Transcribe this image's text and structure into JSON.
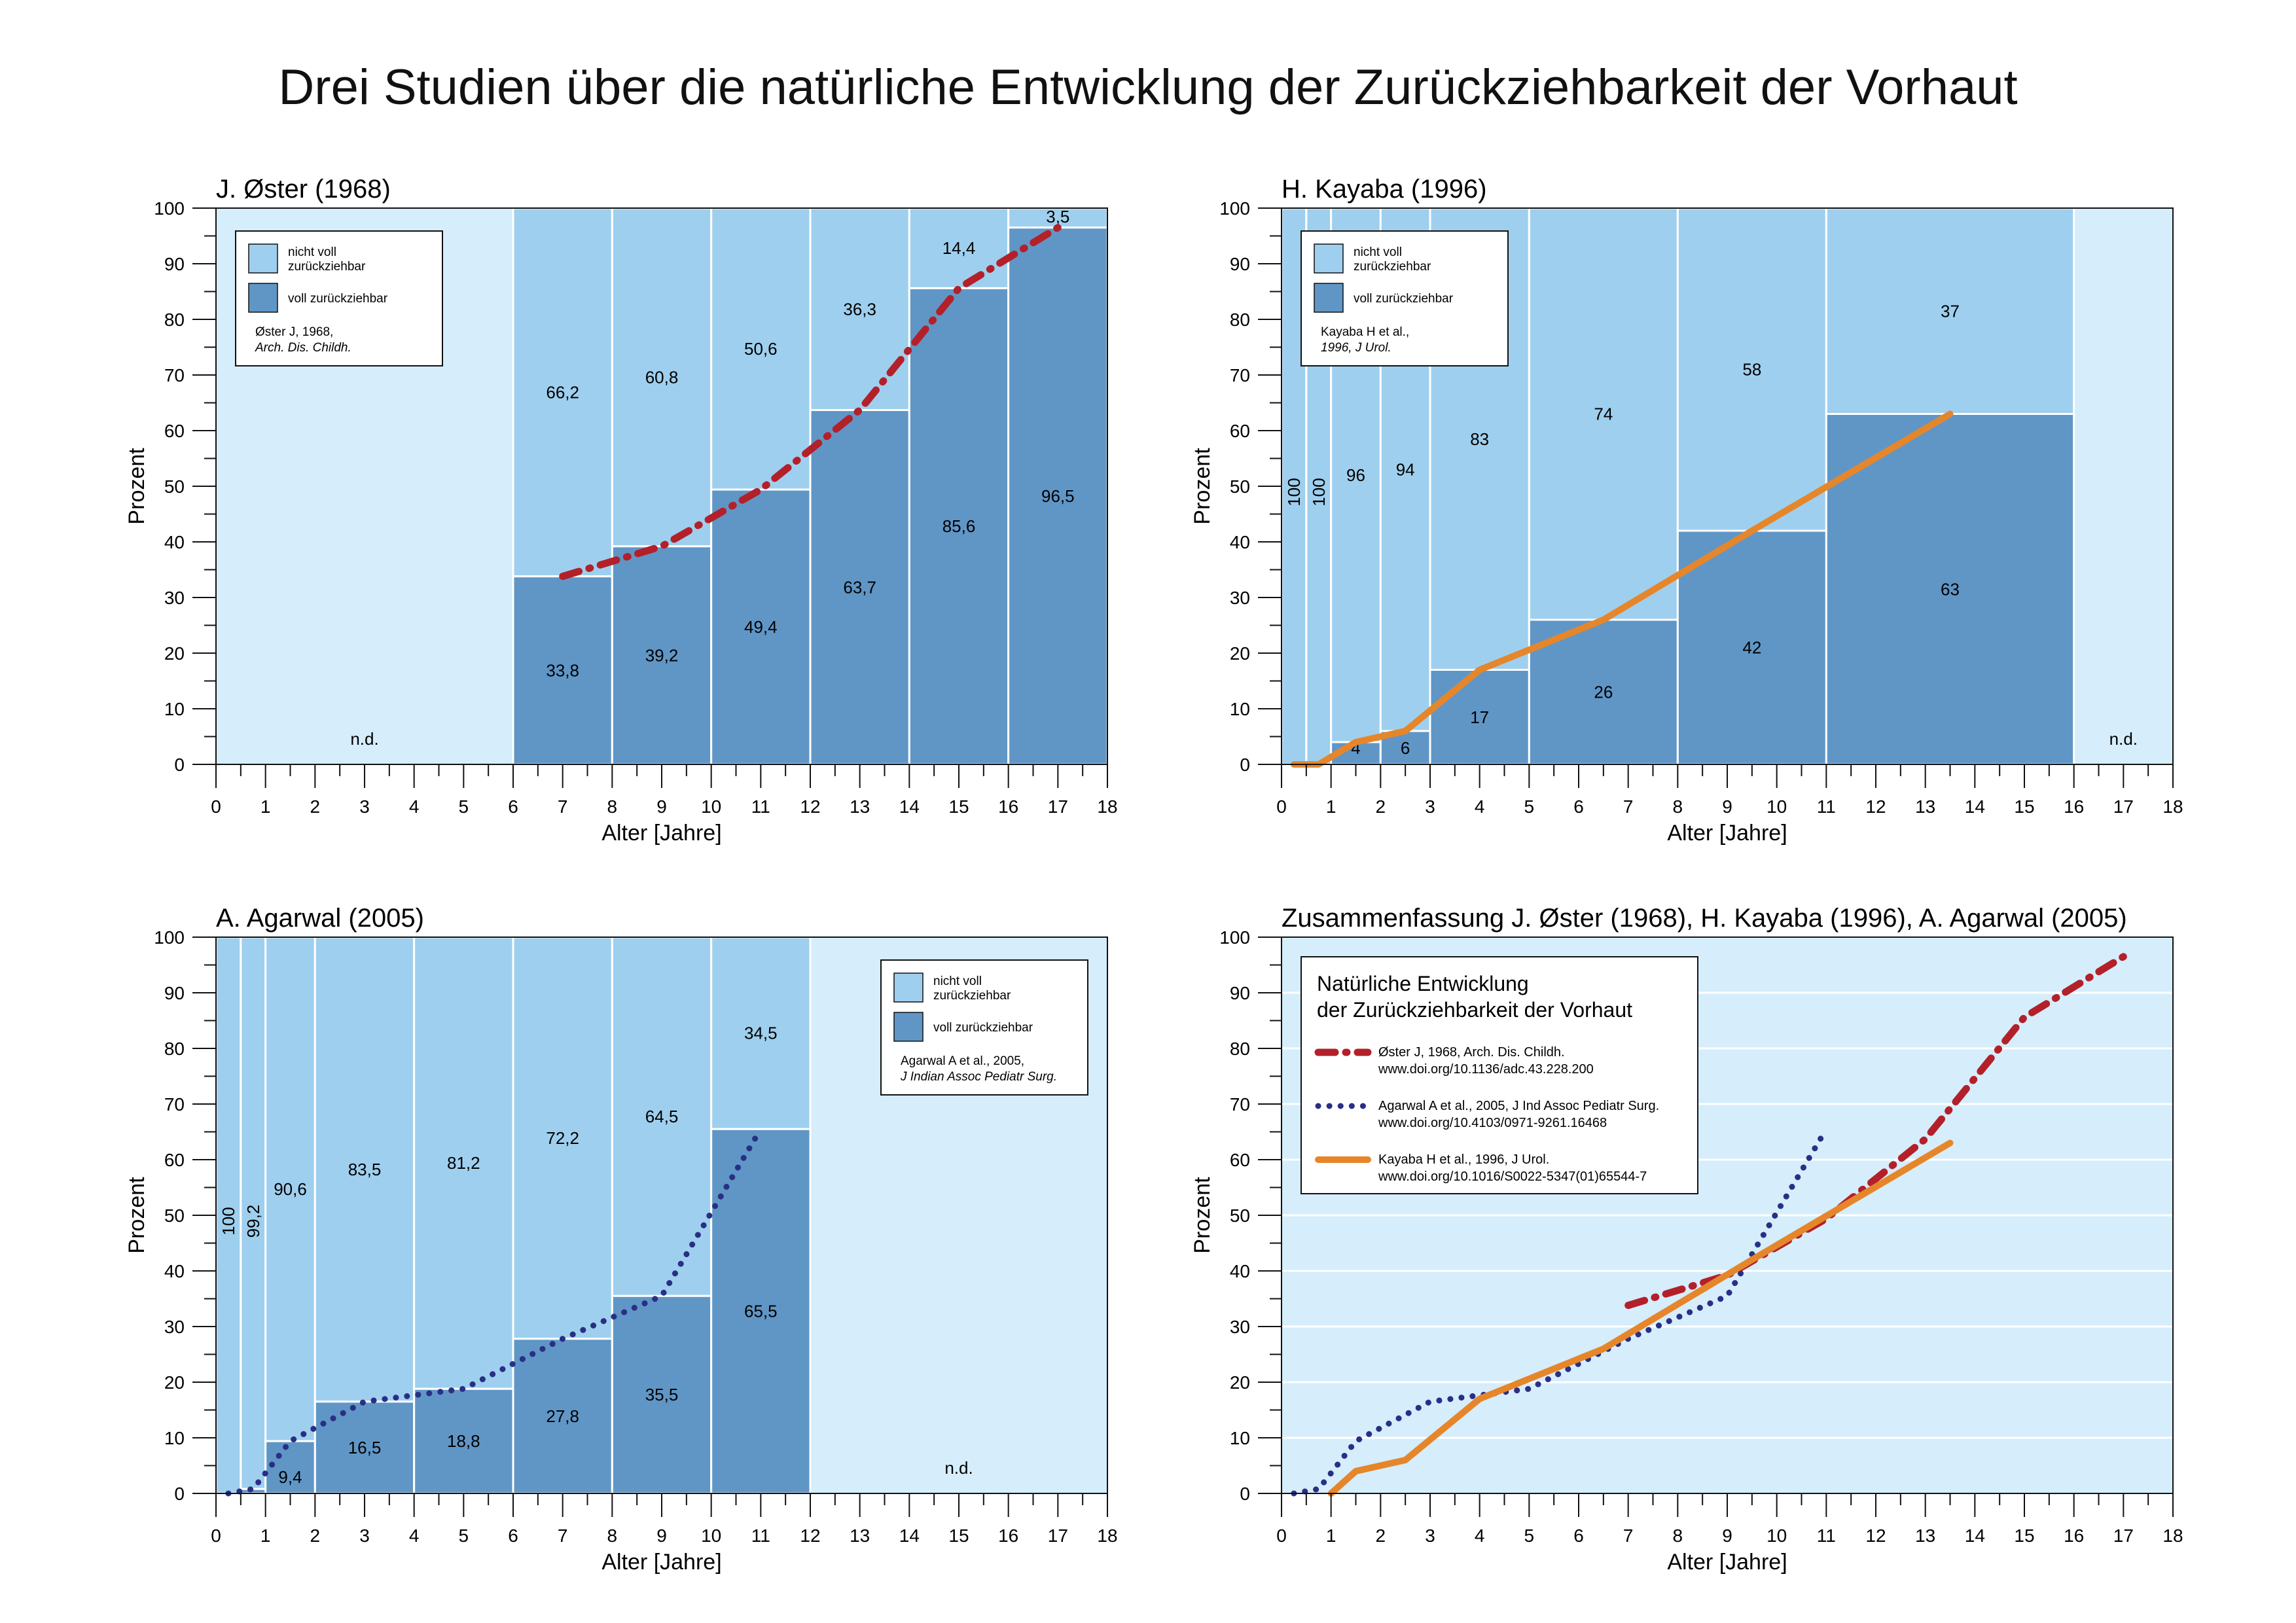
{
  "page_title": "Drei Studien über die natürliche Entwicklung der Zurückziehbarkeit der Vorhaut",
  "colors": {
    "light": "#9fcfee",
    "dark": "#6096c6",
    "background": "#d6edfb",
    "oster": "#b3202a",
    "agarwal": "#2a2f85",
    "kayaba": "#e6862a"
  },
  "chart_data": [
    {
      "type": "bar",
      "title": "J. Øster (1968)",
      "xlabel": "Alter [Jahre]",
      "ylabel": "Prozent",
      "xlim": [
        0,
        18
      ],
      "ylim": [
        0,
        100
      ],
      "x_ticks": [
        "0",
        "1",
        "2",
        "3",
        "4",
        "5",
        "6",
        "7",
        "8",
        "9",
        "10",
        "11",
        "12",
        "13",
        "14",
        "15",
        "16",
        "17",
        "18"
      ],
      "y_ticks": [
        "0",
        "10",
        "20",
        "30",
        "40",
        "50",
        "60",
        "70",
        "80",
        "90",
        "100"
      ],
      "legend": {
        "placement": "top-left",
        "light_label": [
          "nicht voll",
          "zurückziehbar"
        ],
        "dark_label": "voll zurückziehbar",
        "source": [
          "Øster J, 1968,",
          "Arch. Dis. Childh."
        ]
      },
      "nd_label": "n.d.",
      "nd_range": [
        0,
        6
      ],
      "bins": [
        {
          "x0": 6,
          "x1": 8,
          "retractable": 33.8,
          "not_retractable": 66.2,
          "dark_label": "33,8",
          "light_label": "66,2"
        },
        {
          "x0": 8,
          "x1": 10,
          "retractable": 39.2,
          "not_retractable": 60.8,
          "dark_label": "39,2",
          "light_label": "60,8"
        },
        {
          "x0": 10,
          "x1": 12,
          "retractable": 49.4,
          "not_retractable": 50.6,
          "dark_label": "49,4",
          "light_label": "50,6"
        },
        {
          "x0": 12,
          "x1": 14,
          "retractable": 63.7,
          "not_retractable": 36.3,
          "dark_label": "63,7",
          "light_label": "36,3"
        },
        {
          "x0": 14,
          "x1": 16,
          "retractable": 85.6,
          "not_retractable": 14.4,
          "dark_label": "85,6",
          "light_label": "14,4"
        },
        {
          "x0": 16,
          "x1": 18,
          "retractable": 96.5,
          "not_retractable": 3.5,
          "dark_label": "96,5",
          "light_label": "3,5"
        }
      ],
      "trend": {
        "style": "dashdot",
        "color_key": "oster",
        "points": [
          [
            7,
            33.8
          ],
          [
            9,
            39.2
          ],
          [
            11,
            49.4
          ],
          [
            13,
            63.7
          ],
          [
            15,
            85.6
          ],
          [
            17,
            96.5
          ]
        ]
      }
    },
    {
      "type": "bar",
      "title": "H. Kayaba (1996)",
      "xlabel": "Alter [Jahre]",
      "ylabel": "Prozent",
      "xlim": [
        0,
        18
      ],
      "ylim": [
        0,
        100
      ],
      "x_ticks": [
        "0",
        "1",
        "2",
        "3",
        "4",
        "5",
        "6",
        "7",
        "8",
        "9",
        "10",
        "11",
        "12",
        "13",
        "14",
        "15",
        "16",
        "17",
        "18"
      ],
      "y_ticks": [
        "0",
        "10",
        "20",
        "30",
        "40",
        "50",
        "60",
        "70",
        "80",
        "90",
        "100"
      ],
      "legend": {
        "placement": "top-left",
        "light_label": [
          "nicht voll",
          "zurückziehbar"
        ],
        "dark_label": "voll zurückziehbar",
        "source": [
          "Kayaba H et al.,",
          "1996, J Urol."
        ]
      },
      "nd_label": "n.d.",
      "nd_range": [
        16,
        18
      ],
      "bins": [
        {
          "x0": 0,
          "x1": 0.5,
          "retractable": 0,
          "not_retractable": 100,
          "dark_label": "",
          "light_label": "100",
          "vertical": true
        },
        {
          "x0": 0.5,
          "x1": 1,
          "retractable": 0,
          "not_retractable": 100,
          "dark_label": "",
          "light_label": "100",
          "vertical": true
        },
        {
          "x0": 1,
          "x1": 2,
          "retractable": 4,
          "not_retractable": 96,
          "dark_label": "4",
          "light_label": "96"
        },
        {
          "x0": 2,
          "x1": 3,
          "retractable": 6,
          "not_retractable": 94,
          "dark_label": "6",
          "light_label": "94"
        },
        {
          "x0": 3,
          "x1": 5,
          "retractable": 17,
          "not_retractable": 83,
          "dark_label": "17",
          "light_label": "83"
        },
        {
          "x0": 5,
          "x1": 8,
          "retractable": 26,
          "not_retractable": 74,
          "dark_label": "26",
          "light_label": "74"
        },
        {
          "x0": 8,
          "x1": 11,
          "retractable": 42,
          "not_retractable": 58,
          "dark_label": "42",
          "light_label": "58"
        },
        {
          "x0": 11,
          "x1": 16,
          "retractable": 63,
          "not_retractable": 37,
          "dark_label": "63",
          "light_label": "37"
        }
      ],
      "trend": {
        "style": "solid",
        "color_key": "kayaba",
        "points": [
          [
            0.25,
            0
          ],
          [
            0.75,
            0
          ],
          [
            1.5,
            4
          ],
          [
            2.5,
            6
          ],
          [
            4,
            17
          ],
          [
            6.5,
            26
          ],
          [
            9.5,
            42
          ],
          [
            13.5,
            63
          ]
        ]
      }
    },
    {
      "type": "bar",
      "title": "A. Agarwal (2005)",
      "xlabel": "Alter [Jahre]",
      "ylabel": "Prozent",
      "xlim": [
        0,
        18
      ],
      "ylim": [
        0,
        100
      ],
      "x_ticks": [
        "0",
        "1",
        "2",
        "3",
        "4",
        "5",
        "6",
        "7",
        "8",
        "9",
        "10",
        "11",
        "12",
        "13",
        "14",
        "15",
        "16",
        "17",
        "18"
      ],
      "y_ticks": [
        "0",
        "10",
        "20",
        "30",
        "40",
        "50",
        "60",
        "70",
        "80",
        "90",
        "100"
      ],
      "legend": {
        "placement": "top-right",
        "light_label": [
          "nicht voll",
          "zurückziehbar"
        ],
        "dark_label": "voll zurückziehbar",
        "source": [
          "Agarwal A et al., 2005,",
          "J Indian Assoc Pediatr Surg."
        ]
      },
      "nd_label": "n.d.",
      "nd_range": [
        12,
        18
      ],
      "bins": [
        {
          "x0": 0,
          "x1": 0.5,
          "retractable": 0,
          "not_retractable": 100,
          "dark_label": "",
          "light_label": "100",
          "vertical": true
        },
        {
          "x0": 0.5,
          "x1": 1,
          "retractable": 0.8,
          "not_retractable": 99.2,
          "dark_label": "",
          "light_label": "99,2",
          "vertical": true
        },
        {
          "x0": 1,
          "x1": 2,
          "retractable": 9.4,
          "not_retractable": 90.6,
          "dark_label": "9,4",
          "light_label": "90,6"
        },
        {
          "x0": 2,
          "x1": 4,
          "retractable": 16.5,
          "not_retractable": 83.5,
          "dark_label": "16,5",
          "light_label": "83,5"
        },
        {
          "x0": 4,
          "x1": 6,
          "retractable": 18.8,
          "not_retractable": 81.2,
          "dark_label": "18,8",
          "light_label": "81,2"
        },
        {
          "x0": 6,
          "x1": 8,
          "retractable": 27.8,
          "not_retractable": 72.2,
          "dark_label": "27,8",
          "light_label": "72,2"
        },
        {
          "x0": 8,
          "x1": 10,
          "retractable": 35.5,
          "not_retractable": 64.5,
          "dark_label": "35,5",
          "light_label": "64,5"
        },
        {
          "x0": 10,
          "x1": 12,
          "retractable": 65.5,
          "not_retractable": 34.5,
          "dark_label": "65,5",
          "light_label": "34,5"
        }
      ],
      "trend": {
        "style": "dotted",
        "color_key": "agarwal",
        "points": [
          [
            0.25,
            0
          ],
          [
            0.75,
            0.8
          ],
          [
            1.5,
            9.4
          ],
          [
            3,
            16.5
          ],
          [
            5,
            18.8
          ],
          [
            7,
            27.8
          ],
          [
            9,
            35.5
          ],
          [
            11,
            65.5
          ]
        ]
      }
    },
    {
      "type": "line",
      "title": "Zusammenfassung J. Øster (1968), H. Kayaba (1996), A. Agarwal (2005)",
      "xlabel": "Alter [Jahre]",
      "ylabel": "Prozent",
      "xlim": [
        0,
        18
      ],
      "ylim": [
        0,
        100
      ],
      "grid": true,
      "x_ticks": [
        "0",
        "1",
        "2",
        "3",
        "4",
        "5",
        "6",
        "7",
        "8",
        "9",
        "10",
        "11",
        "12",
        "13",
        "14",
        "15",
        "16",
        "17",
        "18"
      ],
      "y_ticks": [
        "0",
        "10",
        "20",
        "30",
        "40",
        "50",
        "60",
        "70",
        "80",
        "90",
        "100"
      ],
      "legend": {
        "placement": "top-left",
        "title": [
          "Natürliche Entwicklung",
          "der Zurückziehbarkeit der Vorhaut"
        ],
        "entries": [
          {
            "text1": "Øster J, 1968, Arch. Dis. Childh.",
            "text2": "www.doi.org/10.1136/adc.43.228.200",
            "color_key": "oster",
            "style": "dashdot"
          },
          {
            "text1": "Agarwal A et al., 2005, J Ind Assoc Pediatr Surg.",
            "text2": "www.doi.org/10.4103/0971-9261.16468",
            "color_key": "agarwal",
            "style": "dotted"
          },
          {
            "text1": "Kayaba H et al., 1996, J Urol.",
            "text2": "www.doi.org/10.1016/S0022-5347(01)65544-7",
            "color_key": "kayaba",
            "style": "solid"
          }
        ]
      },
      "series": [
        {
          "color_key": "oster",
          "style": "dashdot",
          "points": [
            [
              7,
              33.8
            ],
            [
              9,
              39.2
            ],
            [
              11,
              49.4
            ],
            [
              13,
              63.7
            ],
            [
              15,
              85.6
            ],
            [
              17,
              96.5
            ]
          ]
        },
        {
          "color_key": "agarwal",
          "style": "dotted",
          "points": [
            [
              0.25,
              0
            ],
            [
              0.75,
              0.8
            ],
            [
              1.5,
              9.4
            ],
            [
              3,
              16.5
            ],
            [
              5,
              18.8
            ],
            [
              7,
              27.8
            ],
            [
              9,
              35.5
            ],
            [
              11,
              65.5
            ]
          ]
        },
        {
          "color_key": "kayaba",
          "style": "solid",
          "points": [
            [
              1,
              0
            ],
            [
              1.5,
              4
            ],
            [
              2.5,
              6
            ],
            [
              4,
              17
            ],
            [
              6.5,
              26
            ],
            [
              9.5,
              42
            ],
            [
              13.5,
              63
            ]
          ]
        }
      ]
    }
  ]
}
